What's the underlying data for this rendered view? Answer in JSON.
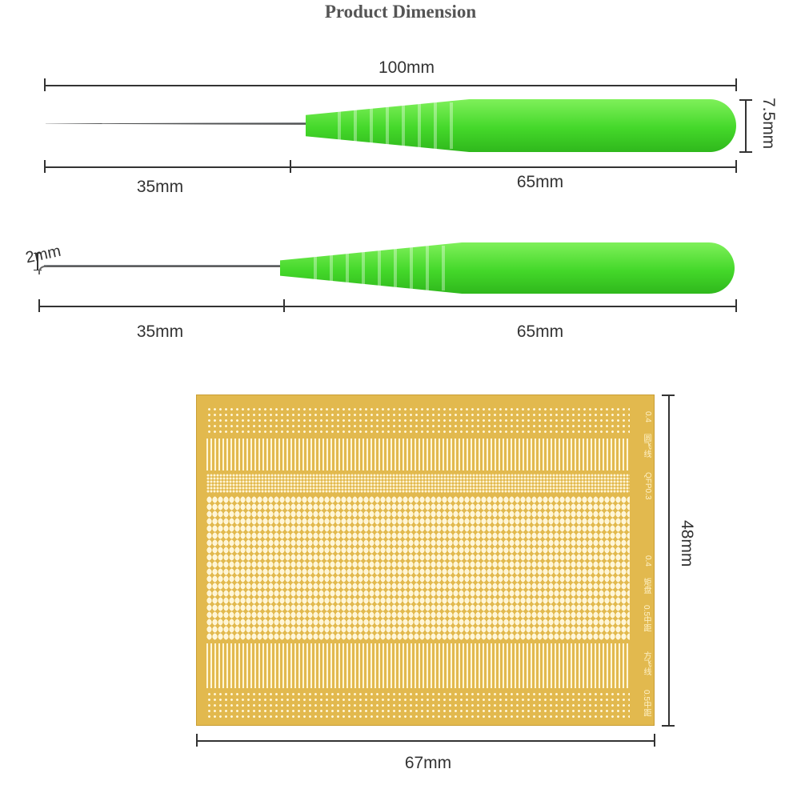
{
  "title": "Product Dimension",
  "needle1": {
    "total": "100mm",
    "height": "7.5mm",
    "tip": "35mm",
    "handle": "65mm"
  },
  "needle2": {
    "hook": "2mm",
    "tip": "35mm",
    "handle": "65mm"
  },
  "board": {
    "height": "48mm",
    "width": "67mm",
    "labels": [
      "0.4",
      "圆飞线",
      "QFP0.3",
      "0.4",
      "矩盘",
      "0.5中距",
      "方飞线",
      "0.5中距"
    ]
  },
  "colors": {
    "handle": "#44d82a",
    "board": "#e2b94e"
  }
}
